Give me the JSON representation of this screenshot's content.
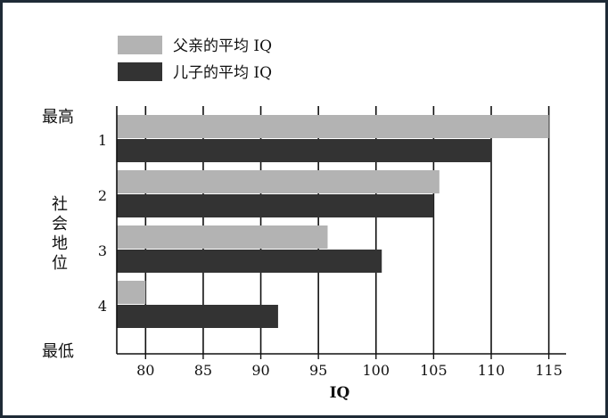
{
  "chart_data": {
    "type": "bar",
    "orientation": "horizontal",
    "categories": [
      "1",
      "2",
      "3",
      "4"
    ],
    "series": [
      {
        "name": "父亲的平均 IQ",
        "values": [
          115,
          105.5,
          95.8,
          80
        ],
        "color": "#b3b3b3"
      },
      {
        "name": "儿子的平均 IQ",
        "values": [
          110,
          105,
          100.5,
          91.5
        ],
        "color": "#333333"
      }
    ],
    "xlabel": "IQ",
    "xlim": [
      77.5,
      116.5
    ],
    "xticks": [
      80,
      85,
      90,
      95,
      100,
      105,
      110,
      115
    ],
    "y_axis_label": "社会地位",
    "y_top_label": "最高",
    "y_bottom_label": "最低",
    "grid": "vertical",
    "legend_position": "top-left"
  }
}
